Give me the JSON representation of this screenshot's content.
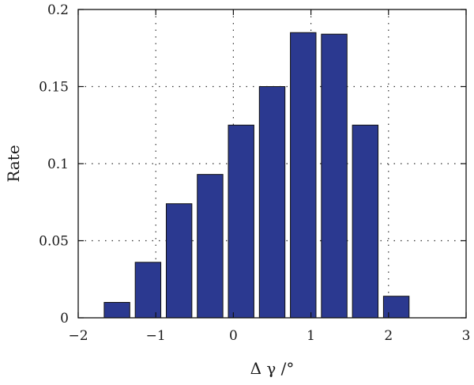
{
  "chart_data": {
    "type": "bar",
    "title": "",
    "xlabel": "Δ γ /°",
    "ylabel": "Rate",
    "xlim": [
      -2,
      3
    ],
    "ylim": [
      0,
      0.2
    ],
    "x_ticks": [
      -2,
      -1,
      0,
      1,
      2,
      3
    ],
    "x_tick_labels": [
      "−2",
      "−1",
      "0",
      "1",
      "2",
      "3"
    ],
    "y_ticks": [
      0,
      0.05,
      0.1,
      0.15,
      0.2
    ],
    "y_tick_labels": [
      "0",
      "0.05",
      "0.1",
      "0.15",
      "0.2"
    ],
    "grid": true,
    "bar_width": 0.33,
    "bar_color": "#2b3990",
    "x": [
      -1.5,
      -1.1,
      -0.7,
      -0.3,
      0.1,
      0.5,
      0.9,
      1.3,
      1.7,
      2.1
    ],
    "values": [
      0.01,
      0.036,
      0.074,
      0.093,
      0.125,
      0.15,
      0.185,
      0.184,
      0.125,
      0.014
    ]
  }
}
